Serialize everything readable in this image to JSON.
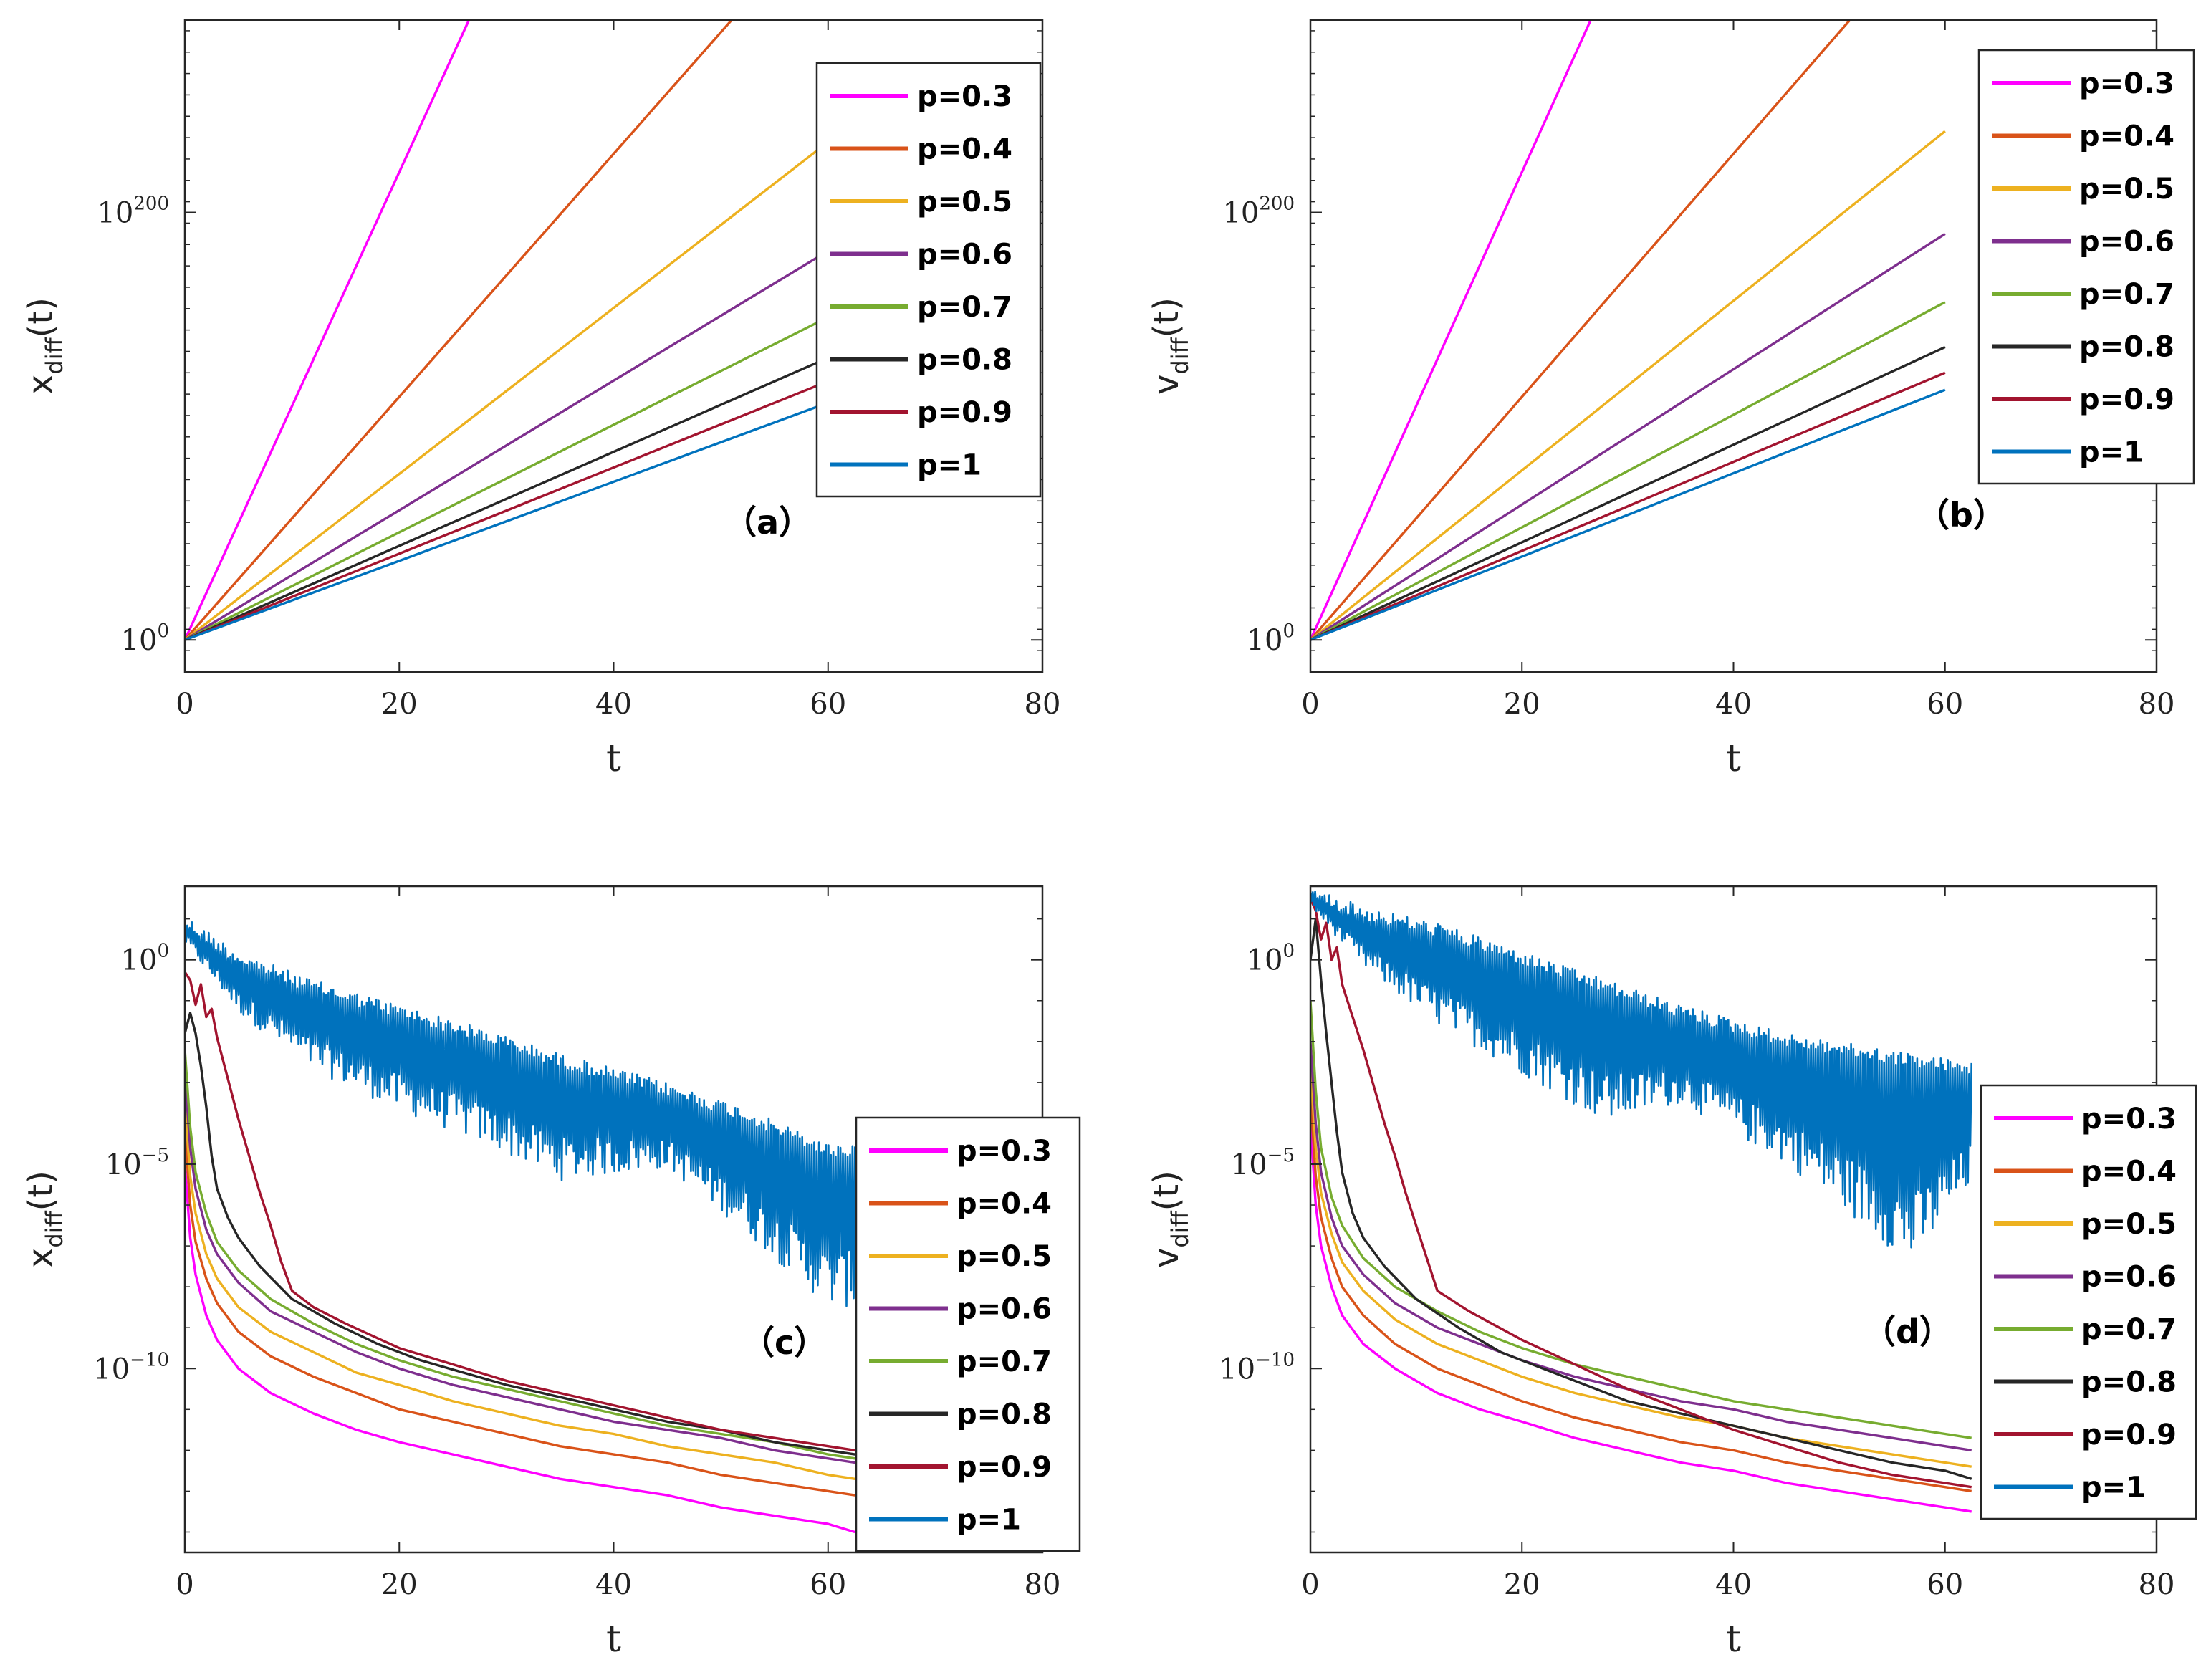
{
  "legend_labels": [
    "p=0.3",
    "p=0.4",
    "p=0.5",
    "p=0.6",
    "p=0.7",
    "p=0.8",
    "p=0.9",
    "p=1"
  ],
  "series_colors": [
    "#ff00ff",
    "#d95319",
    "#edb120",
    "#7e2f8e",
    "#77ac30",
    "#262626",
    "#a2142f",
    "#0072bd"
  ],
  "chart_data": [
    {
      "type": "line",
      "panel_label": "（a）",
      "xlabel": "t",
      "ylabel_main": "x",
      "ylabel_sub": "diff",
      "ylabel_suffix": "(t)",
      "y_scale": "log",
      "xlim": [
        0,
        80
      ],
      "ylim_log10": [
        -15,
        290
      ],
      "x_ticks": [
        "0",
        "20",
        "40",
        "60",
        "80"
      ],
      "y_ticks": [
        {
          "base": "10",
          "exp": "0",
          "log": 0
        },
        {
          "base": "10",
          "exp": "200",
          "log": 200
        }
      ],
      "legend_position": "top-right",
      "series": [
        {
          "name": "p=0.3",
          "x": [
            0,
            26.5
          ],
          "log10_y": [
            0,
            290
          ]
        },
        {
          "name": "p=0.4",
          "x": [
            0,
            51
          ],
          "log10_y": [
            0,
            290
          ]
        },
        {
          "name": "p=0.5",
          "x": [
            0,
            60
          ],
          "log10_y": [
            0,
            233
          ]
        },
        {
          "name": "p=0.6",
          "x": [
            0,
            60
          ],
          "log10_y": [
            0,
            182
          ]
        },
        {
          "name": "p=0.7",
          "x": [
            0,
            60
          ],
          "log10_y": [
            0,
            151
          ]
        },
        {
          "name": "p=0.8",
          "x": [
            0,
            60
          ],
          "log10_y": [
            0,
            132
          ]
        },
        {
          "name": "p=0.9",
          "x": [
            0,
            60
          ],
          "log10_y": [
            0,
            121
          ]
        },
        {
          "name": "p=1",
          "x": [
            0,
            60
          ],
          "log10_y": [
            0,
            111
          ]
        }
      ]
    },
    {
      "type": "line",
      "panel_label": "（b）",
      "xlabel": "t",
      "ylabel_main": "v",
      "ylabel_sub": "diff",
      "ylabel_suffix": "(t)",
      "y_scale": "log",
      "xlim": [
        0,
        80
      ],
      "ylim_log10": [
        -15,
        290
      ],
      "x_ticks": [
        "0",
        "20",
        "40",
        "60",
        "80"
      ],
      "y_ticks": [
        {
          "base": "10",
          "exp": "0",
          "log": 0
        },
        {
          "base": "10",
          "exp": "200",
          "log": 200
        }
      ],
      "legend_position": "top-right",
      "series": [
        {
          "name": "p=0.3",
          "x": [
            0,
            26.5
          ],
          "log10_y": [
            0,
            290
          ]
        },
        {
          "name": "p=0.4",
          "x": [
            0,
            51
          ],
          "log10_y": [
            0,
            290
          ]
        },
        {
          "name": "p=0.5",
          "x": [
            0,
            60
          ],
          "log10_y": [
            0,
            238
          ]
        },
        {
          "name": "p=0.6",
          "x": [
            0,
            60
          ],
          "log10_y": [
            0,
            190
          ]
        },
        {
          "name": "p=0.7",
          "x": [
            0,
            60
          ],
          "log10_y": [
            0,
            158
          ]
        },
        {
          "name": "p=0.8",
          "x": [
            0,
            60
          ],
          "log10_y": [
            0,
            137
          ]
        },
        {
          "name": "p=0.9",
          "x": [
            0,
            60
          ],
          "log10_y": [
            0,
            125
          ]
        },
        {
          "name": "p=1",
          "x": [
            0,
            60
          ],
          "log10_y": [
            0,
            117
          ]
        }
      ]
    },
    {
      "type": "line",
      "panel_label": "（c）",
      "xlabel": "t",
      "ylabel_main": "x",
      "ylabel_sub": "diff",
      "ylabel_suffix": "(t)",
      "y_scale": "log",
      "xlim": [
        0,
        80
      ],
      "ylim_log10": [
        -14.5,
        1.8
      ],
      "x_ticks": [
        "0",
        "20",
        "40",
        "60",
        "80"
      ],
      "y_ticks": [
        {
          "base": "10",
          "exp": "0",
          "log": 0
        },
        {
          "base": "10",
          "exp": "−5",
          "log": -5
        },
        {
          "base": "10",
          "exp": "−10",
          "log": -10
        }
      ],
      "legend_position": "bottom-right",
      "series": [
        {
          "name": "p=0.3",
          "x": [
            0,
            0.5,
            1,
            2,
            3,
            5,
            8,
            12,
            16,
            20,
            25,
            30,
            35,
            40,
            45,
            50,
            55,
            60,
            62.5
          ],
          "log10_y": [
            -5,
            -6.8,
            -7.7,
            -8.7,
            -9.3,
            -10,
            -10.6,
            -11.1,
            -11.5,
            -11.8,
            -12.1,
            -12.4,
            -12.7,
            -12.9,
            -13.1,
            -13.4,
            -13.6,
            -13.8,
            -14
          ]
        },
        {
          "name": "p=0.4",
          "x": [
            0,
            0.5,
            1,
            2,
            3,
            5,
            8,
            12,
            16,
            20,
            25,
            30,
            35,
            40,
            45,
            50,
            55,
            60,
            62.5
          ],
          "log10_y": [
            -4.2,
            -6,
            -6.9,
            -7.8,
            -8.4,
            -9.1,
            -9.7,
            -10.2,
            -10.6,
            -11,
            -11.3,
            -11.6,
            -11.9,
            -12.1,
            -12.3,
            -12.6,
            -12.8,
            -13,
            -13.1
          ]
        },
        {
          "name": "p=0.5",
          "x": [
            0,
            0.5,
            1,
            2,
            3,
            5,
            8,
            12,
            16,
            20,
            25,
            30,
            35,
            40,
            45,
            50,
            55,
            60,
            62.5
          ],
          "log10_y": [
            -3.5,
            -5.3,
            -6.2,
            -7.2,
            -7.8,
            -8.5,
            -9.1,
            -9.6,
            -10.1,
            -10.4,
            -10.8,
            -11.1,
            -11.4,
            -11.6,
            -11.9,
            -12.1,
            -12.3,
            -12.6,
            -12.7
          ]
        },
        {
          "name": "p=0.6",
          "x": [
            0,
            0.5,
            1,
            2,
            3,
            5,
            8,
            12,
            16,
            20,
            25,
            30,
            35,
            40,
            45,
            50,
            55,
            60,
            62.5
          ],
          "log10_y": [
            -2.8,
            -4.6,
            -5.6,
            -6.6,
            -7.2,
            -7.9,
            -8.6,
            -9.1,
            -9.6,
            -10,
            -10.4,
            -10.7,
            -11,
            -11.3,
            -11.5,
            -11.7,
            -12,
            -12.2,
            -12.3
          ]
        },
        {
          "name": "p=0.7",
          "x": [
            0,
            0.5,
            1,
            2,
            3,
            5,
            8,
            12,
            16,
            20,
            25,
            30,
            35,
            40,
            45,
            50,
            55,
            60,
            62.5
          ],
          "log10_y": [
            -2.2,
            -4.1,
            -5.2,
            -6.2,
            -6.9,
            -7.6,
            -8.3,
            -8.9,
            -9.4,
            -9.8,
            -10.2,
            -10.5,
            -10.8,
            -11.1,
            -11.4,
            -11.6,
            -11.8,
            -12.1,
            -12.2
          ]
        },
        {
          "name": "p=0.8",
          "x": [
            0,
            0.5,
            1,
            1.5,
            2,
            2.5,
            3,
            4,
            5,
            7,
            10,
            14,
            18,
            22,
            26,
            30,
            35,
            40,
            45,
            50,
            55,
            60,
            62.5
          ],
          "log10_y": [
            -1.8,
            -1.3,
            -1.8,
            -2.6,
            -3.6,
            -4.8,
            -5.6,
            -6.3,
            -6.8,
            -7.5,
            -8.3,
            -8.9,
            -9.4,
            -9.8,
            -10.1,
            -10.4,
            -10.7,
            -11,
            -11.3,
            -11.5,
            -11.8,
            -12,
            -12.1
          ]
        },
        {
          "name": "p=0.9",
          "x": [
            0,
            0.5,
            1,
            1.5,
            2,
            2.5,
            3,
            4,
            5,
            6,
            7,
            8,
            9,
            10,
            12,
            15,
            20,
            25,
            30,
            35,
            40,
            45,
            50,
            55,
            60,
            62.5
          ],
          "log10_y": [
            -0.3,
            -0.5,
            -1.1,
            -0.6,
            -1.4,
            -1.2,
            -1.9,
            -2.9,
            -3.9,
            -4.8,
            -5.7,
            -6.5,
            -7.4,
            -8.1,
            -8.5,
            -8.9,
            -9.5,
            -9.9,
            -10.3,
            -10.6,
            -10.9,
            -11.2,
            -11.5,
            -11.7,
            -11.9,
            -12
          ]
        },
        {
          "name": "p=1",
          "envelope_upper_log10": [
            1.1,
            0.2,
            -0.5,
            -1.1,
            -1.7,
            -2.3,
            -3,
            -3.6,
            -4.5
          ],
          "envelope_lower_log10": [
            0.4,
            -1.3,
            -2.7,
            -3.7,
            -4.5,
            -5.4,
            -5.1,
            -6.6,
            -8.5
          ],
          "envelope_x": [
            0,
            5,
            12,
            20,
            28,
            35,
            45,
            52,
            60
          ],
          "x_end": 62.5
        }
      ]
    },
    {
      "type": "line",
      "panel_label": "（d）",
      "xlabel": "t",
      "ylabel_main": "v",
      "ylabel_sub": "diff",
      "ylabel_suffix": "(t)",
      "y_scale": "log",
      "xlim": [
        0,
        80
      ],
      "ylim_log10": [
        -14.5,
        1.8
      ],
      "x_ticks": [
        "0",
        "20",
        "40",
        "60",
        "80"
      ],
      "y_ticks": [
        {
          "base": "10",
          "exp": "0",
          "log": 0
        },
        {
          "base": "10",
          "exp": "−5",
          "log": -5
        },
        {
          "base": "10",
          "exp": "−10",
          "log": -10
        }
      ],
      "legend_position": "bottom-right",
      "series": [
        {
          "name": "p=0.3",
          "x": [
            0,
            0.5,
            1,
            2,
            3,
            5,
            8,
            12,
            16,
            20,
            25,
            30,
            35,
            40,
            45,
            50,
            55,
            60,
            62.5
          ],
          "log10_y": [
            -4,
            -6,
            -7,
            -8,
            -8.7,
            -9.4,
            -10,
            -10.6,
            -11,
            -11.3,
            -11.7,
            -12,
            -12.3,
            -12.5,
            -12.8,
            -13,
            -13.2,
            -13.4,
            -13.5
          ]
        },
        {
          "name": "p=0.4",
          "x": [
            0,
            0.5,
            1,
            2,
            3,
            5,
            8,
            12,
            16,
            20,
            25,
            30,
            35,
            40,
            45,
            50,
            55,
            60,
            62.5
          ],
          "log10_y": [
            -3.3,
            -5.3,
            -6.3,
            -7.3,
            -8,
            -8.7,
            -9.4,
            -10,
            -10.4,
            -10.8,
            -11.2,
            -11.5,
            -11.8,
            -12,
            -12.3,
            -12.5,
            -12.7,
            -12.9,
            -13
          ]
        },
        {
          "name": "p=0.5",
          "x": [
            0,
            0.5,
            1,
            2,
            3,
            5,
            8,
            12,
            16,
            20,
            25,
            30,
            35,
            40,
            45,
            50,
            55,
            60,
            62.5
          ],
          "log10_y": [
            -2.6,
            -4.6,
            -5.7,
            -6.7,
            -7.4,
            -8.1,
            -8.8,
            -9.4,
            -9.8,
            -10.2,
            -10.6,
            -10.9,
            -11.2,
            -11.4,
            -11.7,
            -11.9,
            -12.1,
            -12.3,
            -12.4
          ]
        },
        {
          "name": "p=0.6",
          "x": [
            0,
            0.5,
            1,
            2,
            3,
            5,
            8,
            12,
            16,
            20,
            25,
            30,
            35,
            40,
            45,
            50,
            55,
            60,
            62.5
          ],
          "log10_y": [
            -2,
            -4,
            -5.2,
            -6.3,
            -7,
            -7.7,
            -8.4,
            -9,
            -9.4,
            -9.8,
            -10.2,
            -10.5,
            -10.8,
            -11,
            -11.3,
            -11.5,
            -11.7,
            -11.9,
            -12
          ]
        },
        {
          "name": "p=0.7",
          "x": [
            0,
            0.5,
            1,
            2,
            3,
            5,
            8,
            12,
            16,
            20,
            25,
            30,
            35,
            40,
            45,
            50,
            55,
            60,
            62.5
          ],
          "log10_y": [
            -1,
            -3.2,
            -4.6,
            -5.8,
            -6.5,
            -7.3,
            -8,
            -8.6,
            -9.1,
            -9.5,
            -9.9,
            -10.2,
            -10.5,
            -10.8,
            -11,
            -11.2,
            -11.4,
            -11.6,
            -11.7
          ]
        },
        {
          "name": "p=0.8",
          "x": [
            0,
            0.5,
            1,
            1.5,
            2,
            2.5,
            3,
            4,
            5,
            7,
            10,
            14,
            18,
            22,
            26,
            30,
            35,
            40,
            45,
            50,
            55,
            60,
            62.5
          ],
          "log10_y": [
            0,
            1,
            -0.5,
            -1.8,
            -3,
            -4.2,
            -5.2,
            -6.2,
            -6.8,
            -7.5,
            -8.3,
            -9,
            -9.6,
            -10,
            -10.4,
            -10.8,
            -11.1,
            -11.4,
            -11.7,
            -12,
            -12.3,
            -12.5,
            -12.7
          ]
        },
        {
          "name": "p=0.9",
          "x": [
            0,
            0.5,
            1,
            1.5,
            2,
            2.5,
            3,
            4,
            5,
            6,
            7,
            8,
            9,
            10,
            11,
            12,
            15,
            20,
            25,
            30,
            35,
            40,
            45,
            50,
            55,
            60,
            62.5
          ],
          "log10_y": [
            1.5,
            1.2,
            0.5,
            0.9,
            0,
            0.3,
            -0.6,
            -1.4,
            -2.2,
            -3.1,
            -4,
            -4.8,
            -5.7,
            -6.5,
            -7.3,
            -8.1,
            -8.6,
            -9.3,
            -9.9,
            -10.5,
            -11,
            -11.5,
            -11.9,
            -12.3,
            -12.6,
            -12.8,
            -12.9
          ]
        },
        {
          "name": "p=1",
          "envelope_upper_log10": [
            1.8,
            1.3,
            0.9,
            0.2,
            -0.5,
            -1.1,
            -1.8,
            -2.3,
            -2.5
          ],
          "envelope_lower_log10": [
            1.3,
            -0.2,
            -1.6,
            -2.8,
            -4,
            -3.5,
            -5,
            -7.5,
            -5.5
          ],
          "envelope_x": [
            0,
            5,
            12,
            20,
            28,
            35,
            45,
            57,
            62.5
          ],
          "x_end": 62.5
        }
      ]
    }
  ]
}
